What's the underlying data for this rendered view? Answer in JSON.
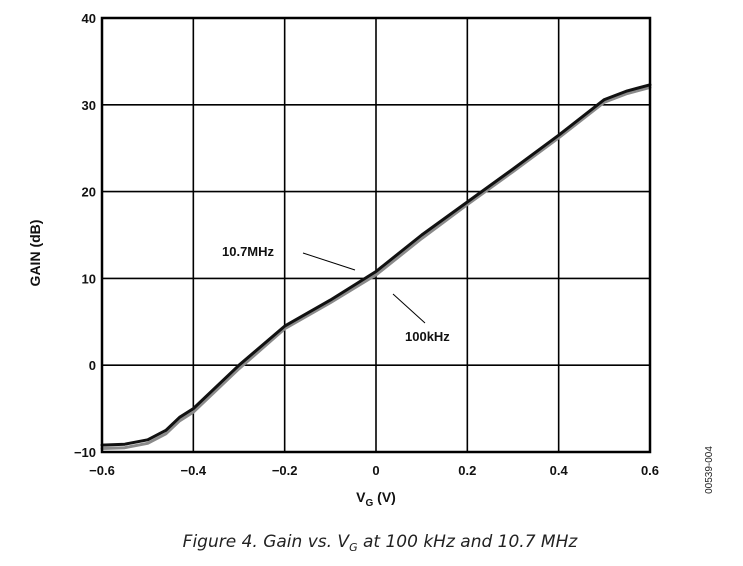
{
  "chart_data": {
    "type": "line",
    "title": "",
    "xlabel_main": "V",
    "xlabel_sub": "G",
    "xlabel_unit": " (V)",
    "ylabel": "GAIN (dB)",
    "xlim": [
      -0.6,
      0.6
    ],
    "ylim": [
      -10,
      40
    ],
    "xticks": [
      -0.6,
      -0.4,
      -0.2,
      0,
      0.2,
      0.4,
      0.6
    ],
    "yticks": [
      -10,
      0,
      10,
      20,
      30,
      40
    ],
    "xtick_labels": [
      "−0.6",
      "−0.4",
      "−0.2",
      "0",
      "0.2",
      "0.4",
      "0.6"
    ],
    "ytick_labels": [
      "−10",
      "0",
      "10",
      "20",
      "30",
      "40"
    ],
    "grid": true,
    "series": [
      {
        "name": "10.7MHz",
        "color": "#111111",
        "x": [
          -0.6,
          -0.55,
          -0.5,
          -0.46,
          -0.43,
          -0.4,
          -0.3,
          -0.2,
          -0.1,
          0,
          0.1,
          0.2,
          0.3,
          0.4,
          0.5,
          0.55,
          0.6
        ],
        "y": [
          -9.2,
          -9.1,
          -8.6,
          -7.5,
          -6,
          -5,
          0,
          4.5,
          7.5,
          10.8,
          15,
          18.8,
          22.6,
          26.5,
          30.6,
          31.6,
          32.3
        ]
      },
      {
        "name": "100kHz",
        "color": "#8a8a8a",
        "x": [
          -0.6,
          -0.55,
          -0.5,
          -0.46,
          -0.43,
          -0.4,
          -0.3,
          -0.2,
          -0.1,
          0,
          0.1,
          0.2,
          0.3,
          0.4,
          0.5,
          0.55,
          0.6
        ],
        "y": [
          -9.6,
          -9.5,
          -9.0,
          -7.9,
          -6.4,
          -5.4,
          -0.4,
          4.2,
          7.2,
          10.4,
          14.6,
          18.5,
          22.3,
          26.2,
          30.3,
          31.3,
          32.0
        ]
      }
    ],
    "annotations": [
      {
        "text": "10.7MHz",
        "x_data": -0.02,
        "y_data": 11.4
      },
      {
        "text": "100kHz",
        "x_data": 0.04,
        "y_data": 8.8
      }
    ],
    "caption_prefix": "Figure 4. Gain vs. V",
    "caption_sub": "G",
    "caption_suffix": " at 100 kHz and 10.7 MHz",
    "figure_code": "00539-004"
  }
}
